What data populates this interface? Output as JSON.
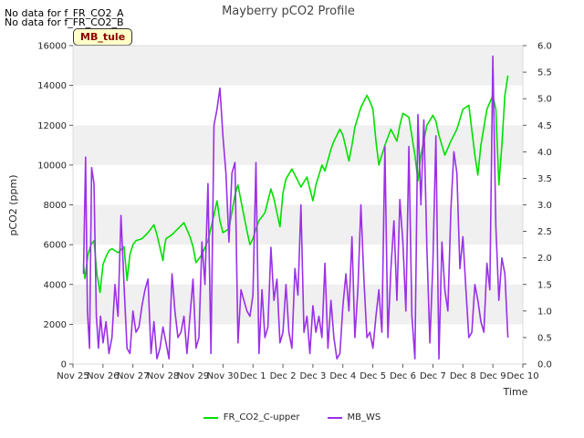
{
  "notes": [
    "No data for f_FR_CO2_A",
    "No data for f_FR_CO2_B"
  ],
  "site_label": "MB_tule",
  "chart_data": {
    "type": "line",
    "title": "Mayberry pCO2 Profile",
    "xlabel": "Time",
    "ylabel": "pCO2 (ppm)",
    "y2label": "",
    "x_ticks": [
      "Nov 25",
      "Nov 26",
      "Nov 27",
      "Nov 28",
      "Nov 29",
      "Nov 30",
      "Dec 1",
      "Dec 2",
      "Dec 3",
      "Dec 4",
      "Dec 5",
      "Dec 6",
      "Dec 7",
      "Dec 8",
      "Dec 9",
      "Dec 10"
    ],
    "xlim": [
      0,
      15
    ],
    "ylim": [
      0,
      16000
    ],
    "y2lim": [
      0,
      6.0
    ],
    "y_ticks": [
      0,
      2000,
      4000,
      6000,
      8000,
      10000,
      12000,
      14000,
      16000
    ],
    "y2_ticks": [
      "0.0",
      "0.5",
      "1.0",
      "1.5",
      "2.0",
      "2.5",
      "3.0",
      "3.5",
      "4.0",
      "4.5",
      "5.0",
      "5.5",
      "6.0"
    ],
    "grid": "horizontal bands",
    "legend_position": "bottom",
    "colors": {
      "FR_CO2_C-upper": "#00e000",
      "MB_WS": "#9b30e6",
      "band": "#f0f0f0"
    },
    "series": [
      {
        "name": "FR_CO2_C-upper",
        "axis": "left",
        "x": [
          0.35,
          0.4,
          0.5,
          0.6,
          0.7,
          0.8,
          0.9,
          1.0,
          1.1,
          1.2,
          1.3,
          1.5,
          1.7,
          1.8,
          1.9,
          2.0,
          2.1,
          2.3,
          2.5,
          2.7,
          2.8,
          3.0,
          3.05,
          3.1,
          3.3,
          3.5,
          3.7,
          3.9,
          4.0,
          4.1,
          4.3,
          4.5,
          4.7,
          4.8,
          4.9,
          5.0,
          5.2,
          5.4,
          5.5,
          5.6,
          5.8,
          5.9,
          6.0,
          6.1,
          6.2,
          6.4,
          6.6,
          6.7,
          6.9,
          7.0,
          7.1,
          7.3,
          7.5,
          7.6,
          7.8,
          7.9,
          8.0,
          8.1,
          8.3,
          8.4,
          8.6,
          8.7,
          8.9,
          9.0,
          9.2,
          9.3,
          9.4,
          9.6,
          9.8,
          9.9,
          10.0,
          10.1,
          10.2,
          10.4,
          10.6,
          10.7,
          10.8,
          10.9,
          11.0,
          11.2,
          11.4,
          11.5,
          11.6,
          11.8,
          12.0,
          12.1,
          12.2,
          12.4,
          12.6,
          12.7,
          12.8,
          13.0,
          13.2,
          13.4,
          13.5,
          13.6,
          13.8,
          14.0,
          14.1,
          14.2,
          14.3,
          14.4,
          14.5
        ],
        "values": [
          5000,
          4300,
          5500,
          6000,
          6200,
          4500,
          3600,
          5000,
          5400,
          5700,
          5800,
          5600,
          5900,
          4200,
          5500,
          6000,
          6200,
          6300,
          6600,
          7000,
          6500,
          5200,
          5900,
          6300,
          6500,
          6800,
          7100,
          6400,
          5900,
          5100,
          5500,
          6200,
          7500,
          8200,
          7200,
          6600,
          6800,
          8500,
          9000,
          8200,
          6700,
          6000,
          6300,
          6800,
          7200,
          7600,
          8800,
          8300,
          6900,
          8600,
          9300,
          9800,
          9200,
          8900,
          9400,
          8800,
          8200,
          9000,
          10000,
          9700,
          10800,
          11200,
          11800,
          11500,
          10200,
          11000,
          11900,
          12900,
          13500,
          13200,
          12800,
          11200,
          10000,
          11000,
          11800,
          11500,
          11200,
          12000,
          12600,
          12400,
          10500,
          9200,
          10500,
          12000,
          12500,
          12200,
          11500,
          10500,
          11200,
          11500,
          11800,
          12800,
          13000,
          10500,
          9500,
          11000,
          12800,
          13500,
          12800,
          9000,
          11000,
          13500,
          14500
        ]
      },
      {
        "name": "MB_WS",
        "axis": "right",
        "x": [
          0.35,
          0.42,
          0.48,
          0.55,
          0.62,
          0.7,
          0.78,
          0.85,
          0.92,
          1.0,
          1.1,
          1.2,
          1.3,
          1.4,
          1.5,
          1.6,
          1.7,
          1.8,
          1.9,
          2.0,
          2.1,
          2.2,
          2.3,
          2.4,
          2.5,
          2.6,
          2.7,
          2.8,
          2.9,
          3.0,
          3.1,
          3.2,
          3.3,
          3.4,
          3.5,
          3.6,
          3.7,
          3.8,
          3.9,
          4.0,
          4.1,
          4.2,
          4.3,
          4.4,
          4.5,
          4.6,
          4.7,
          4.8,
          4.9,
          5.0,
          5.1,
          5.2,
          5.3,
          5.4,
          5.5,
          5.6,
          5.7,
          5.8,
          5.9,
          6.0,
          6.1,
          6.2,
          6.3,
          6.4,
          6.5,
          6.6,
          6.7,
          6.8,
          6.9,
          7.0,
          7.1,
          7.2,
          7.3,
          7.4,
          7.5,
          7.6,
          7.7,
          7.8,
          7.9,
          8.0,
          8.1,
          8.2,
          8.3,
          8.4,
          8.5,
          8.6,
          8.7,
          8.8,
          8.9,
          9.0,
          9.1,
          9.2,
          9.3,
          9.4,
          9.5,
          9.6,
          9.7,
          9.8,
          9.9,
          10.0,
          10.1,
          10.2,
          10.3,
          10.4,
          10.5,
          10.6,
          10.7,
          10.8,
          10.9,
          11.0,
          11.1,
          11.2,
          11.3,
          11.4,
          11.5,
          11.6,
          11.7,
          11.8,
          11.9,
          12.0,
          12.1,
          12.2,
          12.3,
          12.4,
          12.5,
          12.6,
          12.7,
          12.8,
          12.9,
          13.0,
          13.1,
          13.2,
          13.3,
          13.4,
          13.5,
          13.6,
          13.7,
          13.8,
          13.9,
          14.0,
          14.1,
          14.2,
          14.3,
          14.4,
          14.5
        ],
        "values": [
          1.7,
          3.9,
          1.0,
          0.3,
          3.7,
          3.4,
          0.9,
          0.3,
          0.9,
          0.4,
          0.8,
          0.2,
          0.5,
          1.5,
          0.9,
          2.8,
          1.5,
          0.3,
          0.2,
          1.0,
          0.6,
          0.7,
          1.1,
          1.4,
          1.6,
          0.2,
          0.8,
          0.1,
          0.3,
          0.7,
          0.4,
          0.1,
          1.7,
          1.0,
          0.5,
          0.6,
          0.9,
          0.2,
          0.9,
          1.6,
          0.3,
          0.5,
          2.3,
          1.5,
          3.4,
          0.2,
          4.5,
          4.8,
          5.2,
          4.3,
          3.6,
          2.3,
          3.6,
          3.8,
          0.4,
          1.4,
          1.2,
          1.0,
          0.9,
          1.3,
          3.8,
          0.2,
          1.4,
          0.5,
          0.7,
          2.2,
          1.2,
          1.6,
          0.4,
          0.6,
          1.5,
          0.6,
          0.3,
          1.8,
          1.3,
          3.0,
          0.6,
          0.9,
          0.2,
          1.1,
          0.6,
          0.9,
          0.5,
          1.9,
          0.3,
          1.2,
          0.5,
          0.1,
          0.2,
          1.1,
          1.7,
          1.0,
          2.4,
          0.5,
          1.4,
          3.0,
          1.6,
          0.5,
          0.6,
          0.3,
          0.9,
          1.4,
          0.6,
          4.1,
          0.5,
          1.8,
          2.7,
          1.2,
          3.1,
          2.3,
          1.0,
          4.1,
          0.9,
          0.1,
          4.7,
          3.0,
          4.6,
          2.2,
          0.4,
          1.9,
          4.3,
          0.1,
          2.3,
          1.4,
          1.0,
          2.9,
          4.0,
          3.6,
          1.8,
          2.4,
          1.4,
          0.5,
          0.6,
          1.5,
          1.2,
          0.8,
          0.6,
          1.9,
          1.4,
          5.8,
          2.6,
          1.2,
          2.0,
          1.7,
          0.5
        ]
      }
    ]
  }
}
